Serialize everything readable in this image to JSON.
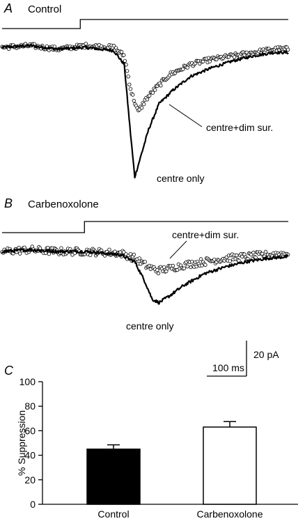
{
  "chart_data": [
    {
      "type": "line",
      "panel_letter": "A",
      "title": "Control",
      "y_units": "pA",
      "x_units": "ms",
      "series": [
        {
          "name": "centre only",
          "style": "solid-thick",
          "x": [
            0,
            40,
            80,
            120,
            160,
            175,
            185,
            190,
            200,
            210,
            225,
            245,
            270,
            300,
            330,
            360,
            390
          ],
          "values": [
            0,
            1,
            -1,
            0,
            -2,
            -10,
            -55,
            -76,
            -62,
            -48,
            -33,
            -25,
            -17,
            -12,
            -8,
            -5,
            -3
          ]
        },
        {
          "name": "centre+dim sur.",
          "style": "open-circles",
          "x": [
            0,
            40,
            80,
            120,
            160,
            175,
            185,
            195,
            205,
            220,
            240,
            270,
            300,
            330,
            360,
            390
          ],
          "values": [
            0,
            1,
            -1,
            1,
            0,
            -5,
            -26,
            -38,
            -31,
            -24,
            -16,
            -10,
            -7,
            -5,
            -3,
            -1
          ]
        }
      ],
      "stimulus": {
        "label": "light step",
        "onset_ms": 112
      },
      "annotations": [
        {
          "label": "centre+dim sur."
        },
        {
          "label": "centre only"
        }
      ]
    },
    {
      "type": "line",
      "panel_letter": "B",
      "title": "Carbenoxolone",
      "y_units": "pA",
      "x_units": "ms",
      "series": [
        {
          "name": "centre only",
          "style": "solid-thick",
          "x": [
            0,
            40,
            80,
            120,
            170,
            190,
            205,
            215,
            225,
            240,
            260,
            290,
            320,
            350,
            380,
            410
          ],
          "values": [
            0,
            1,
            0,
            0,
            -2,
            -6,
            -18,
            -28,
            -30,
            -26,
            -20,
            -13,
            -9,
            -6,
            -4,
            -3
          ]
        },
        {
          "name": "centre+dim sur.",
          "style": "open-circles",
          "x": [
            0,
            40,
            80,
            120,
            170,
            190,
            205,
            215,
            225,
            240,
            260,
            290,
            320,
            350,
            380,
            410
          ],
          "values": [
            0,
            1,
            0,
            0,
            -1,
            -4,
            -8,
            -10,
            -11,
            -10,
            -8,
            -6,
            -4,
            -3,
            -2,
            -1
          ]
        }
      ],
      "stimulus": {
        "label": "light step",
        "onset_ms": 118
      },
      "annotations": [
        {
          "label": "centre+dim sur."
        },
        {
          "label": "centre only"
        }
      ]
    },
    {
      "type": "bar",
      "panel_letter": "C",
      "categories": [
        "Control",
        "Carbenoxolone"
      ],
      "values": [
        45,
        63
      ],
      "errors": [
        3.5,
        4.5
      ],
      "fills": [
        "#000000",
        "#ffffff"
      ],
      "ylabel": "% Suppression",
      "ylim": [
        0,
        100
      ],
      "yticks": [
        "0",
        "20",
        "40",
        "60",
        "80",
        "100"
      ]
    }
  ],
  "scale_bar": {
    "x_label": "100 ms",
    "y_label": "20 pA"
  },
  "colors": {
    "ink": "#000000",
    "background": "#ffffff"
  }
}
